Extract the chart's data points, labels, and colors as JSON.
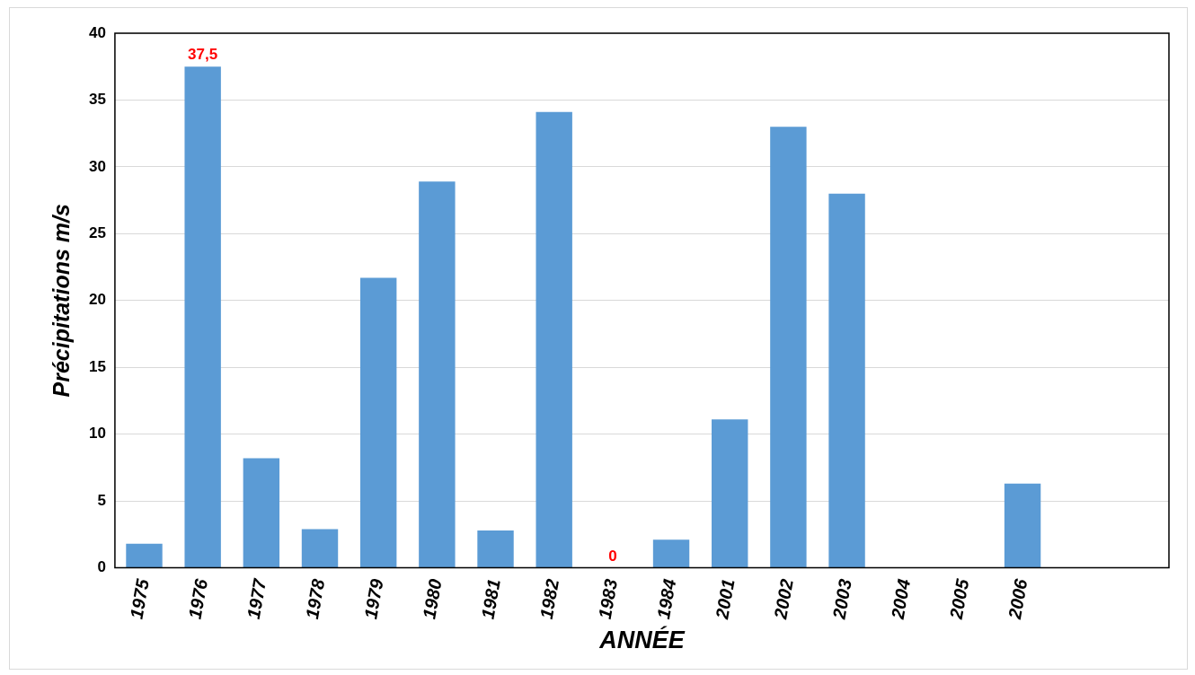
{
  "chart_data": {
    "type": "bar",
    "xlabel": "ANNÉE",
    "ylabel": "Précipitations m/s",
    "categories": [
      "1975",
      "1976",
      "1977",
      "1978",
      "1979",
      "1980",
      "1981",
      "1982",
      "1983",
      "1984",
      "2001",
      "2002",
      "2003",
      "2004",
      "2005",
      "2006",
      null,
      null
    ],
    "values": [
      1.8,
      37.5,
      8.2,
      2.9,
      21.7,
      28.9,
      2.8,
      34.1,
      0,
      2.1,
      11.1,
      33.0,
      28.0,
      null,
      null,
      6.3,
      null,
      null
    ],
    "value_labels": [
      null,
      "37,5",
      null,
      null,
      null,
      null,
      null,
      null,
      "0",
      null,
      null,
      null,
      null,
      null,
      null,
      null,
      null,
      null
    ],
    "color": "#5b9bd5",
    "ylim": [
      0,
      40
    ],
    "yticks": [
      0,
      5,
      10,
      15,
      20,
      25,
      30,
      35,
      40
    ],
    "grid": "y",
    "legend": false
  }
}
